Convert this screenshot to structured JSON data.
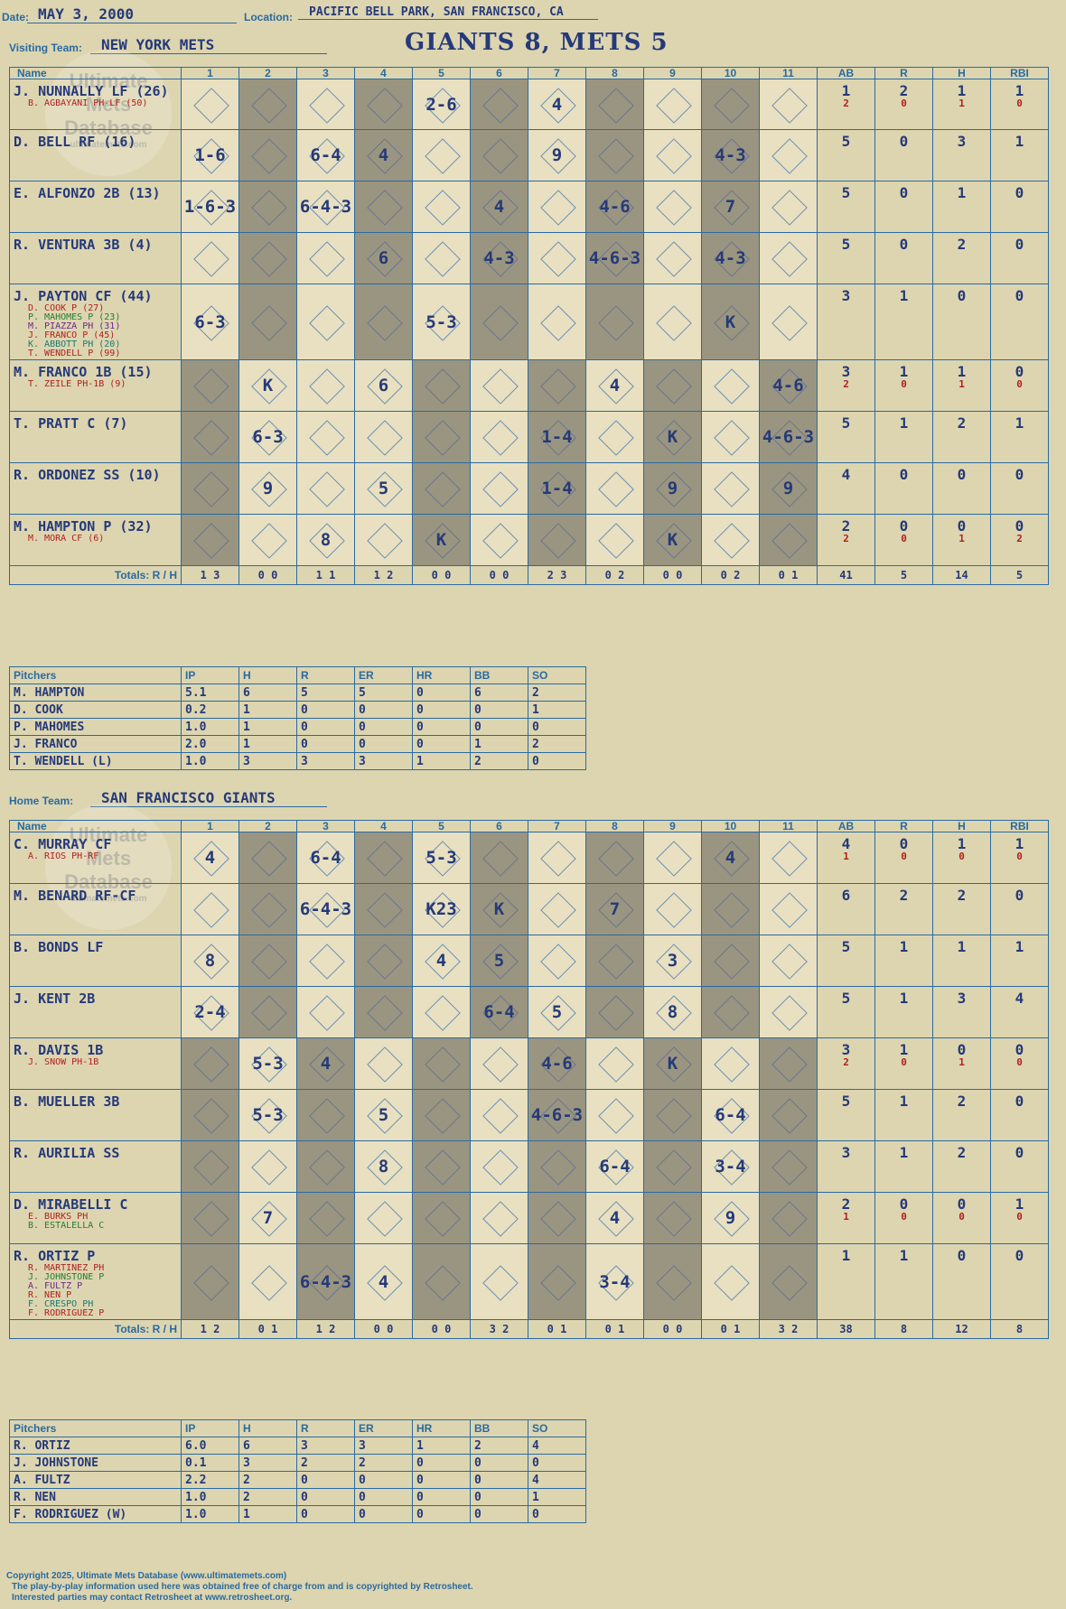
{
  "header": {
    "date_label": "Date:",
    "date": "MAY 3, 2000",
    "location_label": "Location:",
    "location": "PACIFIC BELL PARK, SAN FRANCISCO, CA",
    "visiting_label": "Visiting Team:",
    "visiting_team": "NEW YORK METS",
    "title": "GIANTS 8, METS 5",
    "home_label": "Home Team:",
    "home_team": "SAN FRANCISCO GIANTS"
  },
  "watermark": {
    "line1": "Ultimate",
    "line2": "Mets",
    "line3": "Database",
    "line4": "ultimatemets.com"
  },
  "columns": {
    "name": "Name",
    "innings": [
      "1",
      "2",
      "3",
      "4",
      "5",
      "6",
      "7",
      "8",
      "9",
      "10",
      "11"
    ],
    "stats": [
      "AB",
      "R",
      "H",
      "RBI"
    ]
  },
  "visitor": {
    "batters": [
      {
        "name": "J. NUNNALLY LF (26)",
        "subs": [
          {
            "text": "B. AGBAYANI PH-LF (50)",
            "color": "#b02020"
          }
        ],
        "ab": "1",
        "r": "2",
        "h": "1",
        "rbi": "1",
        "sub_ab": "2",
        "sub_r": "0",
        "sub_h": "1",
        "sub_rbi": "0",
        "cells": [
          "",
          "",
          "",
          "",
          "2-6",
          "",
          "4",
          "",
          "",
          "",
          ""
        ]
      },
      {
        "name": "D. BELL RF (16)",
        "subs": [],
        "ab": "5",
        "r": "0",
        "h": "3",
        "rbi": "1",
        "cells": [
          "1-6",
          "",
          "6-4",
          "4",
          "",
          "",
          "9",
          "",
          "",
          "4-3",
          ""
        ]
      },
      {
        "name": "E. ALFONZO 2B (13)",
        "subs": [],
        "ab": "5",
        "r": "0",
        "h": "1",
        "rbi": "0",
        "cells": [
          "1-6-3",
          "",
          "6-4-3",
          "",
          "",
          "4",
          "",
          "4-6",
          "",
          "7",
          ""
        ]
      },
      {
        "name": "R. VENTURA 3B (4)",
        "subs": [],
        "ab": "5",
        "r": "0",
        "h": "2",
        "rbi": "0",
        "cells": [
          "",
          "",
          "",
          "6",
          "",
          "4-3",
          "",
          "4-6-3",
          "",
          "4-3",
          ""
        ]
      },
      {
        "name": "J. PAYTON CF (44)",
        "subs": [
          {
            "text": "D. COOK P (27)",
            "color": "#b02020"
          },
          {
            "text": "P. MAHOMES P (23)",
            "color": "#2a7a30"
          },
          {
            "text": "M. PIAZZA PH (31)",
            "color": "#6a2a8a"
          },
          {
            "text": "J. FRANCO P (45)",
            "color": "#b02020"
          },
          {
            "text": "K. ABBOTT PH (20)",
            "color": "#1a7a70"
          },
          {
            "text": "T. WENDELL P (99)",
            "color": "#b02020"
          }
        ],
        "ab": "3",
        "r": "1",
        "h": "0",
        "rbi": "0",
        "cells": [
          "6-3",
          "",
          "",
          "",
          "5-3",
          "",
          "",
          "",
          "",
          "K",
          ""
        ]
      },
      {
        "name": "M. FRANCO 1B (15)",
        "subs": [
          {
            "text": "T. ZEILE PH-1B (9)",
            "color": "#b02020"
          }
        ],
        "ab": "3",
        "r": "1",
        "h": "1",
        "rbi": "0",
        "sub_ab": "2",
        "sub_r": "0",
        "sub_h": "1",
        "sub_rbi": "0",
        "cells": [
          "",
          "K",
          "",
          "6",
          "",
          "",
          "",
          "4",
          "",
          "",
          "4-6"
        ]
      },
      {
        "name": "T. PRATT C (7)",
        "subs": [],
        "ab": "5",
        "r": "1",
        "h": "2",
        "rbi": "1",
        "cells": [
          "",
          "6-3",
          "",
          "",
          "",
          "",
          "1-4",
          "",
          "K",
          "",
          "4-6-3"
        ]
      },
      {
        "name": "R. ORDONEZ SS (10)",
        "subs": [],
        "ab": "4",
        "r": "0",
        "h": "0",
        "rbi": "0",
        "cells": [
          "",
          "9",
          "",
          "5",
          "",
          "",
          "1-4",
          "",
          "9",
          "",
          "9"
        ]
      },
      {
        "name": "M. HAMPTON P (32)",
        "subs": [
          {
            "text": "M. MORA CF (6)",
            "color": "#b02020"
          }
        ],
        "ab": "2",
        "r": "0",
        "h": "0",
        "rbi": "0",
        "sub_ab": "2",
        "sub_r": "0",
        "sub_h": "1",
        "sub_rbi": "2",
        "cells": [
          "",
          "",
          "8",
          "",
          "K",
          "",
          "",
          "",
          "K",
          "",
          ""
        ]
      }
    ],
    "totals_label": "Totals:",
    "totals": [
      "1  3",
      "0  0",
      "1  1",
      "1  2",
      "0  0",
      "0  0",
      "2  3",
      "0  2",
      "0  0",
      "0  2",
      "0  1"
    ],
    "totals_stats": [
      "41",
      "5",
      "14",
      "5"
    ],
    "pitchers_header": [
      "Pitchers",
      "IP",
      "H",
      "R",
      "ER",
      "HR",
      "BB",
      "SO"
    ],
    "pitchers": [
      [
        "M. HAMPTON",
        "5.1",
        "6",
        "5",
        "5",
        "0",
        "6",
        "2"
      ],
      [
        "D. COOK",
        "0.2",
        "1",
        "0",
        "0",
        "0",
        "0",
        "1"
      ],
      [
        "P. MAHOMES",
        "1.0",
        "1",
        "0",
        "0",
        "0",
        "0",
        "0"
      ],
      [
        "J. FRANCO",
        "2.0",
        "1",
        "0",
        "0",
        "0",
        "1",
        "2"
      ],
      [
        "T. WENDELL (L)",
        "1.0",
        "3",
        "3",
        "3",
        "1",
        "2",
        "0"
      ]
    ]
  },
  "home": {
    "batters": [
      {
        "name": "C. MURRAY CF",
        "subs": [
          {
            "text": "A. RIOS PH-RF",
            "color": "#b02020"
          }
        ],
        "ab": "4",
        "r": "0",
        "h": "1",
        "rbi": "1",
        "sub_ab": "1",
        "sub_r": "0",
        "sub_h": "0",
        "sub_rbi": "0",
        "cells": [
          "4",
          "",
          "6-4",
          "",
          "5-3",
          "",
          "",
          "",
          "",
          "4",
          ""
        ]
      },
      {
        "name": "M. BENARD RF-CF",
        "subs": [],
        "ab": "6",
        "r": "2",
        "h": "2",
        "rbi": "0",
        "cells": [
          "",
          "",
          "6-4-3",
          "",
          "K23",
          "K",
          "",
          "7",
          "",
          "",
          ""
        ]
      },
      {
        "name": "B. BONDS LF",
        "subs": [],
        "ab": "5",
        "r": "1",
        "h": "1",
        "rbi": "1",
        "cells": [
          "8",
          "",
          "",
          "",
          "4",
          "5",
          "",
          "",
          "3",
          "",
          ""
        ]
      },
      {
        "name": "J. KENT 2B",
        "subs": [],
        "ab": "5",
        "r": "1",
        "h": "3",
        "rbi": "4",
        "cells": [
          "2-4",
          "",
          "",
          "",
          "",
          "6-4",
          "5",
          "",
          "8",
          "",
          ""
        ]
      },
      {
        "name": "R. DAVIS 1B",
        "subs": [
          {
            "text": "J. SNOW PH-1B",
            "color": "#b02020"
          }
        ],
        "ab": "3",
        "r": "1",
        "h": "0",
        "rbi": "0",
        "sub_ab": "2",
        "sub_r": "0",
        "sub_h": "1",
        "sub_rbi": "0",
        "cells": [
          "",
          "5-3",
          "4",
          "",
          "",
          "",
          "4-6",
          "",
          "K",
          "",
          ""
        ]
      },
      {
        "name": "B. MUELLER 3B",
        "subs": [],
        "ab": "5",
        "r": "1",
        "h": "2",
        "rbi": "0",
        "cells": [
          "",
          "5-3",
          "",
          "5",
          "",
          "",
          "4-6-3",
          "",
          "",
          "6-4",
          ""
        ]
      },
      {
        "name": "R. AURILIA SS",
        "subs": [],
        "ab": "3",
        "r": "1",
        "h": "2",
        "rbi": "0",
        "cells": [
          "",
          "",
          "",
          "8",
          "",
          "",
          "",
          "6-4",
          "",
          "3-4",
          ""
        ]
      },
      {
        "name": "D. MIRABELLI C",
        "subs": [
          {
            "text": "E. BURKS PH",
            "color": "#b02020"
          },
          {
            "text": "B. ESTALELLA C",
            "color": "#2a7a30"
          }
        ],
        "ab": "2",
        "r": "0",
        "h": "0",
        "rbi": "1",
        "sub_ab": "1",
        "sub_r": "0",
        "sub_h": "0",
        "sub_rbi": "0",
        "cells": [
          "",
          "7",
          "",
          "",
          "",
          "",
          "",
          "4",
          "",
          "9",
          ""
        ]
      },
      {
        "name": "R. ORTIZ P",
        "subs": [
          {
            "text": "R. MARTINEZ PH",
            "color": "#b02020"
          },
          {
            "text": "J. JOHNSTONE P",
            "color": "#2a7a30"
          },
          {
            "text": "A. FULTZ P",
            "color": "#6a2a8a"
          },
          {
            "text": "R. NEN P",
            "color": "#b02020"
          },
          {
            "text": "F. CRESPO PH",
            "color": "#1a7a70"
          },
          {
            "text": "F. RODRIGUEZ P",
            "color": "#b02020"
          }
        ],
        "ab": "1",
        "r": "1",
        "h": "0",
        "rbi": "0",
        "cells": [
          "",
          "",
          "6-4-3",
          "4",
          "",
          "",
          "",
          "3-4",
          "",
          "",
          ""
        ]
      }
    ],
    "totals_label": "Totals:",
    "totals": [
      "1  2",
      "0  1",
      "1  2",
      "0  0",
      "0  0",
      "3  2",
      "0  1",
      "0  1",
      "0  0",
      "0  1",
      "3  2"
    ],
    "totals_stats": [
      "38",
      "8",
      "12",
      "8"
    ],
    "pitchers_header": [
      "Pitchers",
      "IP",
      "H",
      "R",
      "ER",
      "HR",
      "BB",
      "SO"
    ],
    "pitchers": [
      [
        "R. ORTIZ",
        "6.0",
        "6",
        "3",
        "3",
        "1",
        "2",
        "4"
      ],
      [
        "J. JOHNSTONE",
        "0.1",
        "3",
        "2",
        "2",
        "0",
        "0",
        "0"
      ],
      [
        "A. FULTZ",
        "2.2",
        "2",
        "0",
        "0",
        "0",
        "0",
        "4"
      ],
      [
        "R. NEN",
        "1.0",
        "2",
        "0",
        "0",
        "0",
        "0",
        "1"
      ],
      [
        "F. RODRIGUEZ (W)",
        "1.0",
        "1",
        "0",
        "0",
        "0",
        "0",
        "0"
      ]
    ]
  },
  "footer": {
    "line1": "Copyright 2025, Ultimate Mets Database (www.ultimatemets.com)",
    "line2": "The play-by-play information used here was obtained free of charge from and is copyrighted by Retrosheet.",
    "line3": "Interested parties may contact Retrosheet at www.retrosheet.org."
  }
}
